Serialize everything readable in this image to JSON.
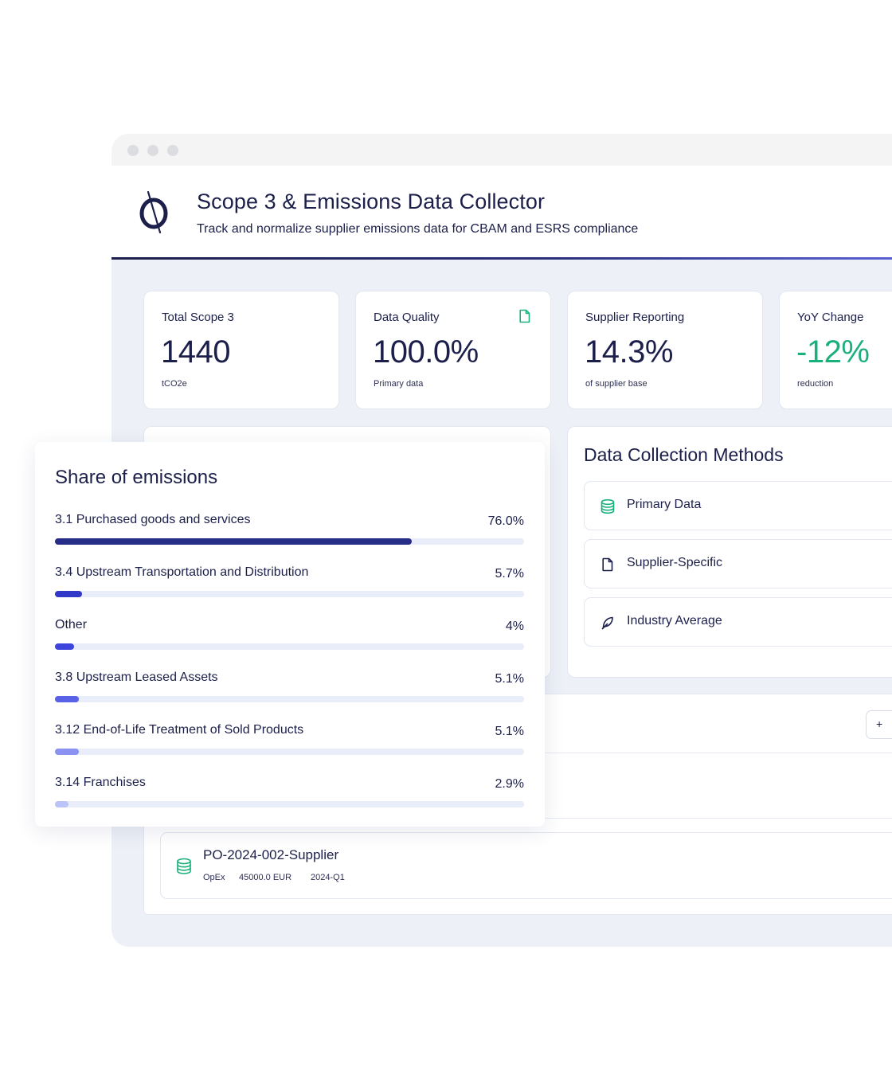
{
  "header": {
    "title": "Scope 3 & Emissions Data Collector",
    "subtitle": "Track and normalize supplier emissions data for CBAM and ESRS compliance",
    "logo_icon": "circle-slash-logo"
  },
  "kpis": [
    {
      "label": "Total Scope 3",
      "value": "1440",
      "sub": "tCO2e"
    },
    {
      "label": "Data Quality",
      "value": "100.0%",
      "sub": "Primary data",
      "icon": "document-icon"
    },
    {
      "label": "Supplier Reporting",
      "value": "14.3%",
      "sub": "of supplier base"
    },
    {
      "label": "YoY Change",
      "value": "-12%",
      "sub": "reduction",
      "value_color": "#19b07b"
    }
  ],
  "methods": {
    "title": "Data Collection Methods",
    "items": [
      {
        "label": "Primary Data",
        "icon": "database-icon"
      },
      {
        "label": "Supplier-Specific",
        "icon": "document-icon"
      },
      {
        "label": "Industry Average",
        "icon": "leaf-icon"
      }
    ]
  },
  "records": {
    "add_label": "+",
    "items": [
      {
        "title": "PO-2024-002-Supplier",
        "category": "OpEx",
        "amount": "45000.0 EUR",
        "period": "2024-Q1",
        "icon": "database-icon"
      }
    ]
  },
  "share": {
    "title": "Share of emissions",
    "rows": [
      {
        "label": "3.1 Purchased goods and services",
        "pct": "76.0%",
        "value": 76.0,
        "color": "#272c86"
      },
      {
        "label": "3.4 Upstream Transportation and Distribution",
        "pct": "5.7%",
        "value": 5.7,
        "color": "#3137c7"
      },
      {
        "label": "Other",
        "pct": "4%",
        "value": 4.0,
        "color": "#3e45dc"
      },
      {
        "label": "3.8 Upstream Leased Assets",
        "pct": "5.1%",
        "value": 5.1,
        "color": "#5961e6"
      },
      {
        "label": "3.12 End-of-Life Treatment of Sold Products",
        "pct": "5.1%",
        "value": 5.1,
        "color": "#8a91f0"
      },
      {
        "label": "3.14 Franchises",
        "pct": "2.9%",
        "value": 2.9,
        "color": "#bcc3f7"
      }
    ]
  },
  "colors": {
    "brand_dark": "#1c1f4a",
    "accent_green": "#19b07b",
    "background": "#edf0f7"
  }
}
